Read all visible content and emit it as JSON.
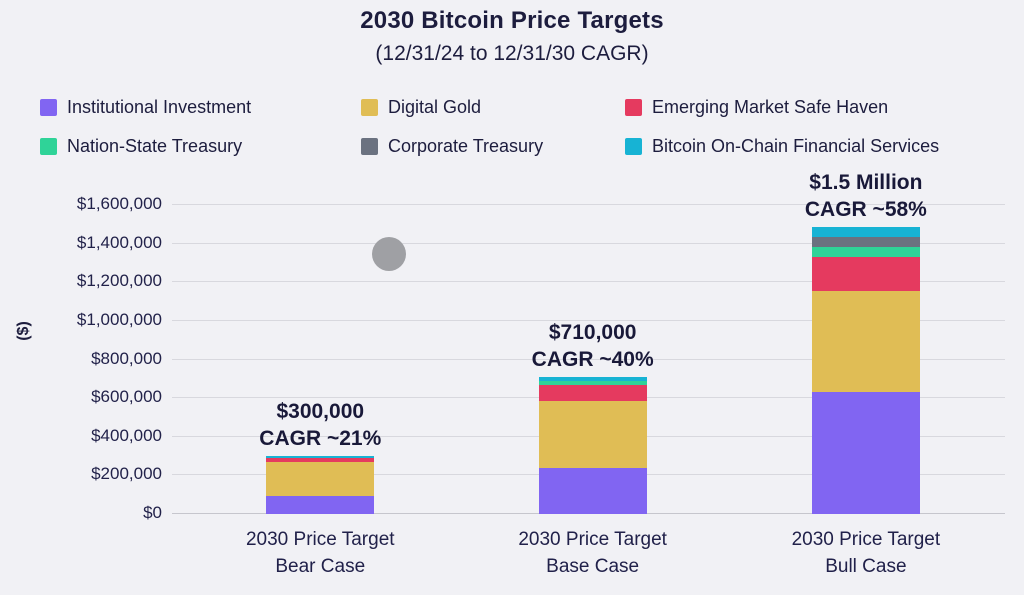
{
  "page": {
    "background": "#f1f1f5"
  },
  "header": {
    "title": "2030 Bitcoin Price Targets",
    "subtitle": "(12/31/24 to 12/31/30 CAGR)"
  },
  "chart_data": {
    "type": "bar",
    "stacked": true,
    "title": "2030 Bitcoin Price Targets",
    "subtitle": "(12/31/24 to 12/31/30 CAGR)",
    "ylabel": "($)",
    "xlabel": "",
    "ylim": [
      0,
      1600000
    ],
    "ytick_step": 200000,
    "ytick_labels": [
      "$0",
      "$200,000",
      "$400,000",
      "$600,000",
      "$800,000",
      "$1,000,000",
      "$1,200,000",
      "$1,400,000",
      "$1,600,000"
    ],
    "grid": true,
    "legend_position": "top",
    "categories": [
      {
        "label_line1": "2030 Price Target",
        "label_line2": "Bear Case",
        "total": 300000
      },
      {
        "label_line1": "2030 Price Target",
        "label_line2": "Base Case",
        "total": 710000
      },
      {
        "label_line1": "2030 Price Target",
        "label_line2": "Bull Case",
        "total": 1500000
      }
    ],
    "series": [
      {
        "name": "Institutional Investment",
        "color": "#8165f2",
        "values": [
          95000,
          240000,
          630000
        ]
      },
      {
        "name": "Digital Gold",
        "color": "#e0bd55",
        "values": [
          175000,
          345000,
          525000
        ]
      },
      {
        "name": "Emerging Market Safe Haven",
        "color": "#e53a5f",
        "values": [
          20000,
          85000,
          175000
        ]
      },
      {
        "name": "Nation-State Treasury",
        "color": "#2fd398",
        "values": [
          0,
          20000,
          55000
        ]
      },
      {
        "name": "Corporate Treasury",
        "color": "#6b7280",
        "values": [
          0,
          0,
          50000
        ]
      },
      {
        "name": "Bitcoin On-Chain Financial Services",
        "color": "#17b3d4",
        "values": [
          10000,
          20000,
          50000
        ]
      }
    ],
    "annotations": [
      {
        "line1": "$300,000",
        "line2": "CAGR ~21%"
      },
      {
        "line1": "$710,000",
        "line2": "CAGR ~40%"
      },
      {
        "line1": "$1.5 Million",
        "line2": "CAGR ~58%"
      }
    ],
    "bar_center_fractions": [
      0.178,
      0.505,
      0.833
    ]
  },
  "overlay": {
    "cursor_color": "#9fa0a4"
  }
}
